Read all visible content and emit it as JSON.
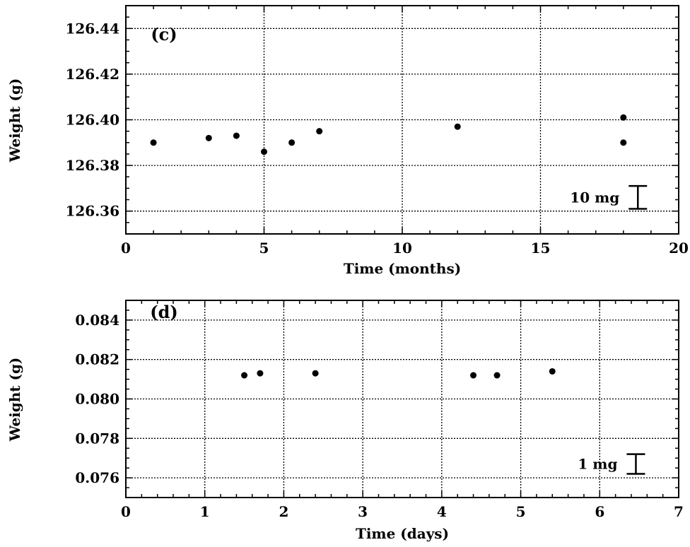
{
  "chart_data": [
    {
      "type": "scatter",
      "panel_label": "(c)",
      "xlabel": "Time (months)",
      "ylabel": "Weight (g)",
      "xlim": [
        0,
        20
      ],
      "ylim": [
        126.35,
        126.45
      ],
      "x_ticks": [
        0,
        5,
        10,
        15,
        20
      ],
      "x_tick_labels": [
        "0",
        "5",
        "10",
        "15",
        "20"
      ],
      "y_ticks": [
        126.36,
        126.38,
        126.4,
        126.42,
        126.44
      ],
      "y_tick_labels": [
        "126.36",
        "126.38",
        "126.40",
        "126.42",
        "126.44"
      ],
      "grid": true,
      "points": [
        {
          "x": 1,
          "y": 126.39
        },
        {
          "x": 3,
          "y": 126.392
        },
        {
          "x": 4,
          "y": 126.393
        },
        {
          "x": 5,
          "y": 126.386
        },
        {
          "x": 6,
          "y": 126.39
        },
        {
          "x": 7,
          "y": 126.395
        },
        {
          "x": 12,
          "y": 126.397
        },
        {
          "x": 18,
          "y": 126.401
        },
        {
          "x": 18,
          "y": 126.39
        }
      ],
      "scale_bar": {
        "label": "10 mg",
        "x": 17.5,
        "y_from": 126.361,
        "y_to": 126.371
      }
    },
    {
      "type": "scatter",
      "panel_label": "(d)",
      "xlabel": "Time (days)",
      "ylabel": "Weight (g)",
      "xlim": [
        0,
        7
      ],
      "ylim": [
        0.075,
        0.085
      ],
      "x_ticks": [
        0,
        1,
        2,
        3,
        4,
        5,
        6,
        7
      ],
      "x_tick_labels": [
        "0",
        "1",
        "2",
        "3",
        "4",
        "5",
        "6",
        "7"
      ],
      "y_ticks": [
        0.076,
        0.078,
        0.08,
        0.082,
        0.084
      ],
      "y_tick_labels": [
        "0.076",
        "0.078",
        "0.080",
        "0.082",
        "0.084"
      ],
      "grid": true,
      "points": [
        {
          "x": 1.5,
          "y": 0.0812
        },
        {
          "x": 1.7,
          "y": 0.0813
        },
        {
          "x": 2.4,
          "y": 0.0813
        },
        {
          "x": 4.4,
          "y": 0.0812
        },
        {
          "x": 4.7,
          "y": 0.0812
        },
        {
          "x": 5.4,
          "y": 0.0814
        }
      ],
      "scale_bar": {
        "label": "1 mg",
        "x": 6.1,
        "y_from": 0.0762,
        "y_to": 0.0772
      }
    }
  ]
}
